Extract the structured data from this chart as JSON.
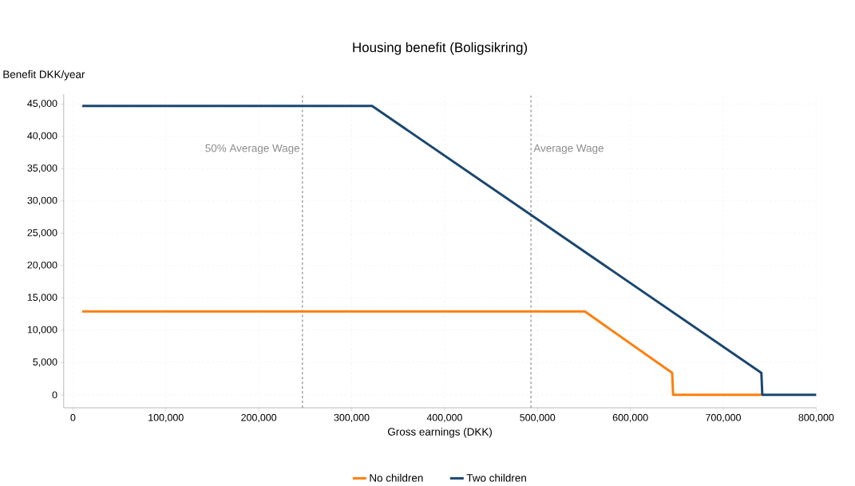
{
  "chart_data": {
    "type": "line",
    "title": "Housing benefit (Boligsikring)",
    "xlabel": "Gross earnings (DKK)",
    "ylabel": "Benefit DKK/year",
    "xlim": [
      -10000,
      800000
    ],
    "ylim": [
      -2000,
      46500
    ],
    "xticks": [
      0,
      {
        "value": 100000,
        "label": "100,000"
      },
      {
        "value": 200000,
        "label": "200,000"
      },
      {
        "value": 300000,
        "label": "300,000"
      },
      {
        "value": 400000,
        "label": "400,000"
      },
      {
        "value": 500000,
        "label": "500,000"
      },
      {
        "value": 600000,
        "label": "600,000"
      },
      {
        "value": 700000,
        "label": "700,000"
      },
      {
        "value": 800000,
        "label": "800,000"
      }
    ],
    "yticks": [
      0,
      {
        "value": 5000,
        "label": "5,000"
      },
      {
        "value": 10000,
        "label": "10,000"
      },
      {
        "value": 15000,
        "label": "15,000"
      },
      {
        "value": 20000,
        "label": "20,000"
      },
      {
        "value": 25000,
        "label": "25,000"
      },
      {
        "value": 30000,
        "label": "30,000"
      },
      {
        "value": 35000,
        "label": "35,000"
      },
      {
        "value": 40000,
        "label": "40,000"
      },
      {
        "value": 45000,
        "label": "45,000"
      }
    ],
    "series": [
      {
        "name": "No children",
        "color": "#fd7f0e",
        "x": [
          10000,
          551000,
          645000,
          646000,
          741000
        ],
        "values": [
          12900,
          12900,
          3400,
          0,
          0
        ]
      },
      {
        "name": "Two children",
        "color": "#1a476f",
        "x": [
          10000,
          322000,
          741000,
          742000,
          800000
        ],
        "values": [
          44700,
          44700,
          3400,
          0,
          0
        ]
      }
    ],
    "ref_lines": [
      {
        "axis": "x",
        "value": 247000,
        "label": "50% Average Wage",
        "color": "#8c8c8c",
        "line_style": "dashed"
      },
      {
        "axis": "x",
        "value": 493000,
        "label": "Average Wage",
        "color": "#8c8c8c",
        "line_style": "dashed"
      }
    ],
    "grid": true,
    "legend": "bottom",
    "line_style": "solid"
  }
}
